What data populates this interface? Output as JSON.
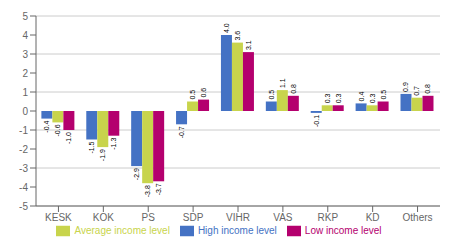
{
  "chart_data": {
    "type": "bar",
    "categories": [
      "KESK",
      "KOK",
      "PS",
      "SDP",
      "VIHR",
      "VAS",
      "RKP",
      "KD",
      "Others"
    ],
    "series": [
      {
        "name": "High income level",
        "color": "#4472c4",
        "values": [
          -0.4,
          -1.5,
          -2.9,
          -0.7,
          4.0,
          0.5,
          -0.1,
          0.4,
          0.9
        ],
        "value_labels": [
          "-0.4",
          "-1.5",
          "-2.9",
          "-0.7",
          "4.0",
          "0.5",
          "-0.1",
          "0.4",
          "0.9"
        ]
      },
      {
        "name": "Average income level",
        "color": "#c8d44c",
        "values": [
          -0.6,
          -1.9,
          -3.8,
          0.5,
          3.6,
          1.1,
          0.3,
          0.3,
          0.7
        ],
        "value_labels": [
          "-0.6",
          "-1.9",
          "-3.8",
          "0.5",
          "3.6",
          "1.1",
          "0.3",
          "0.3",
          "0.7"
        ]
      },
      {
        "name": "Low income level",
        "color": "#b4006e",
        "values": [
          -1.0,
          -1.3,
          -3.7,
          0.6,
          3.1,
          0.8,
          0.3,
          0.5,
          0.8
        ],
        "value_labels": [
          "-1.0",
          "-1.3",
          "-3.7",
          "0.6",
          "3.1",
          "0.8",
          "0.3",
          "0.5",
          "0.8"
        ]
      }
    ],
    "ylim": [
      -5,
      5
    ],
    "yticks": [
      -5,
      -4,
      -3,
      -2,
      -1,
      0,
      1,
      2,
      3,
      4,
      5
    ],
    "grid": true,
    "data_labels": true,
    "legend": "bottom"
  }
}
